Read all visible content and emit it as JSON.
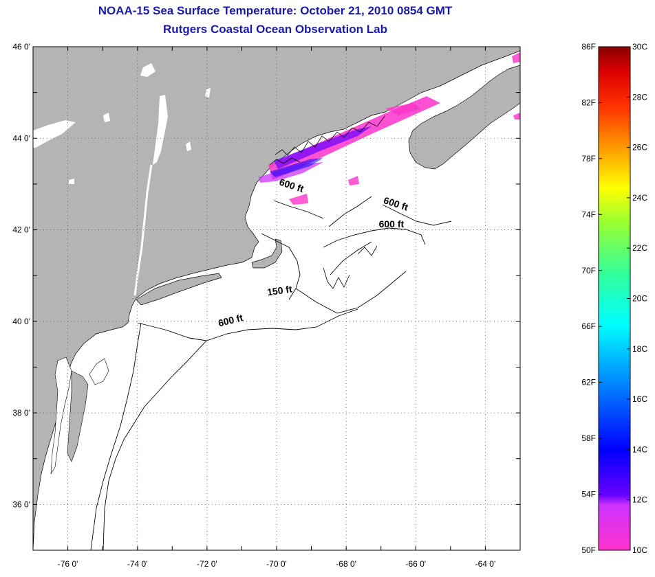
{
  "title": {
    "line1": "NOAA-15 Sea Surface Temperature:  October 21, 2010 0854 GMT",
    "line2": "Rutgers Coastal Ocean Observation Lab"
  },
  "map": {
    "lon_range": [
      -77.0,
      -63.0
    ],
    "lat_range": [
      35.0,
      46.0
    ],
    "lat_ticks": [
      {
        "value": 46,
        "label": "46 0'"
      },
      {
        "value": 44,
        "label": "44 0'"
      },
      {
        "value": 42,
        "label": "42 0'"
      },
      {
        "value": 40,
        "label": "40 0'"
      },
      {
        "value": 38,
        "label": "38 0'"
      },
      {
        "value": 36,
        "label": "36 0'"
      }
    ],
    "lon_ticks": [
      {
        "value": -76,
        "label": "-76 0'"
      },
      {
        "value": -74,
        "label": "-74 0'"
      },
      {
        "value": -72,
        "label": "-72 0'"
      },
      {
        "value": -70,
        "label": "-70 0'"
      },
      {
        "value": -68,
        "label": "-68 0'"
      },
      {
        "value": -66,
        "label": "-66 0'"
      },
      {
        "value": -64,
        "label": "-64 0'"
      }
    ],
    "contour_labels": [
      {
        "text": "600 ft",
        "lon": -69.6,
        "lat": 42.9
      },
      {
        "text": "600 ft",
        "lon": -66.6,
        "lat": 42.5
      },
      {
        "text": "600 ft",
        "lon": -66.7,
        "lat": 42.05
      },
      {
        "text": "150 ft",
        "lon": -69.9,
        "lat": 40.6
      },
      {
        "text": "600 ft",
        "lon": -71.3,
        "lat": 39.95
      }
    ],
    "colors": {
      "land": "#b4b4b4",
      "ocean": "#ffffff",
      "grid": "#555555"
    }
  },
  "colorbar": {
    "f_labels": [
      "86F",
      "82F",
      "78F",
      "74F",
      "70F",
      "66F",
      "62F",
      "58F",
      "54F",
      "50F"
    ],
    "c_labels": [
      "30C",
      "28C",
      "26C",
      "24C",
      "22C",
      "20C",
      "18C",
      "16C",
      "14C",
      "12C",
      "10C"
    ]
  }
}
